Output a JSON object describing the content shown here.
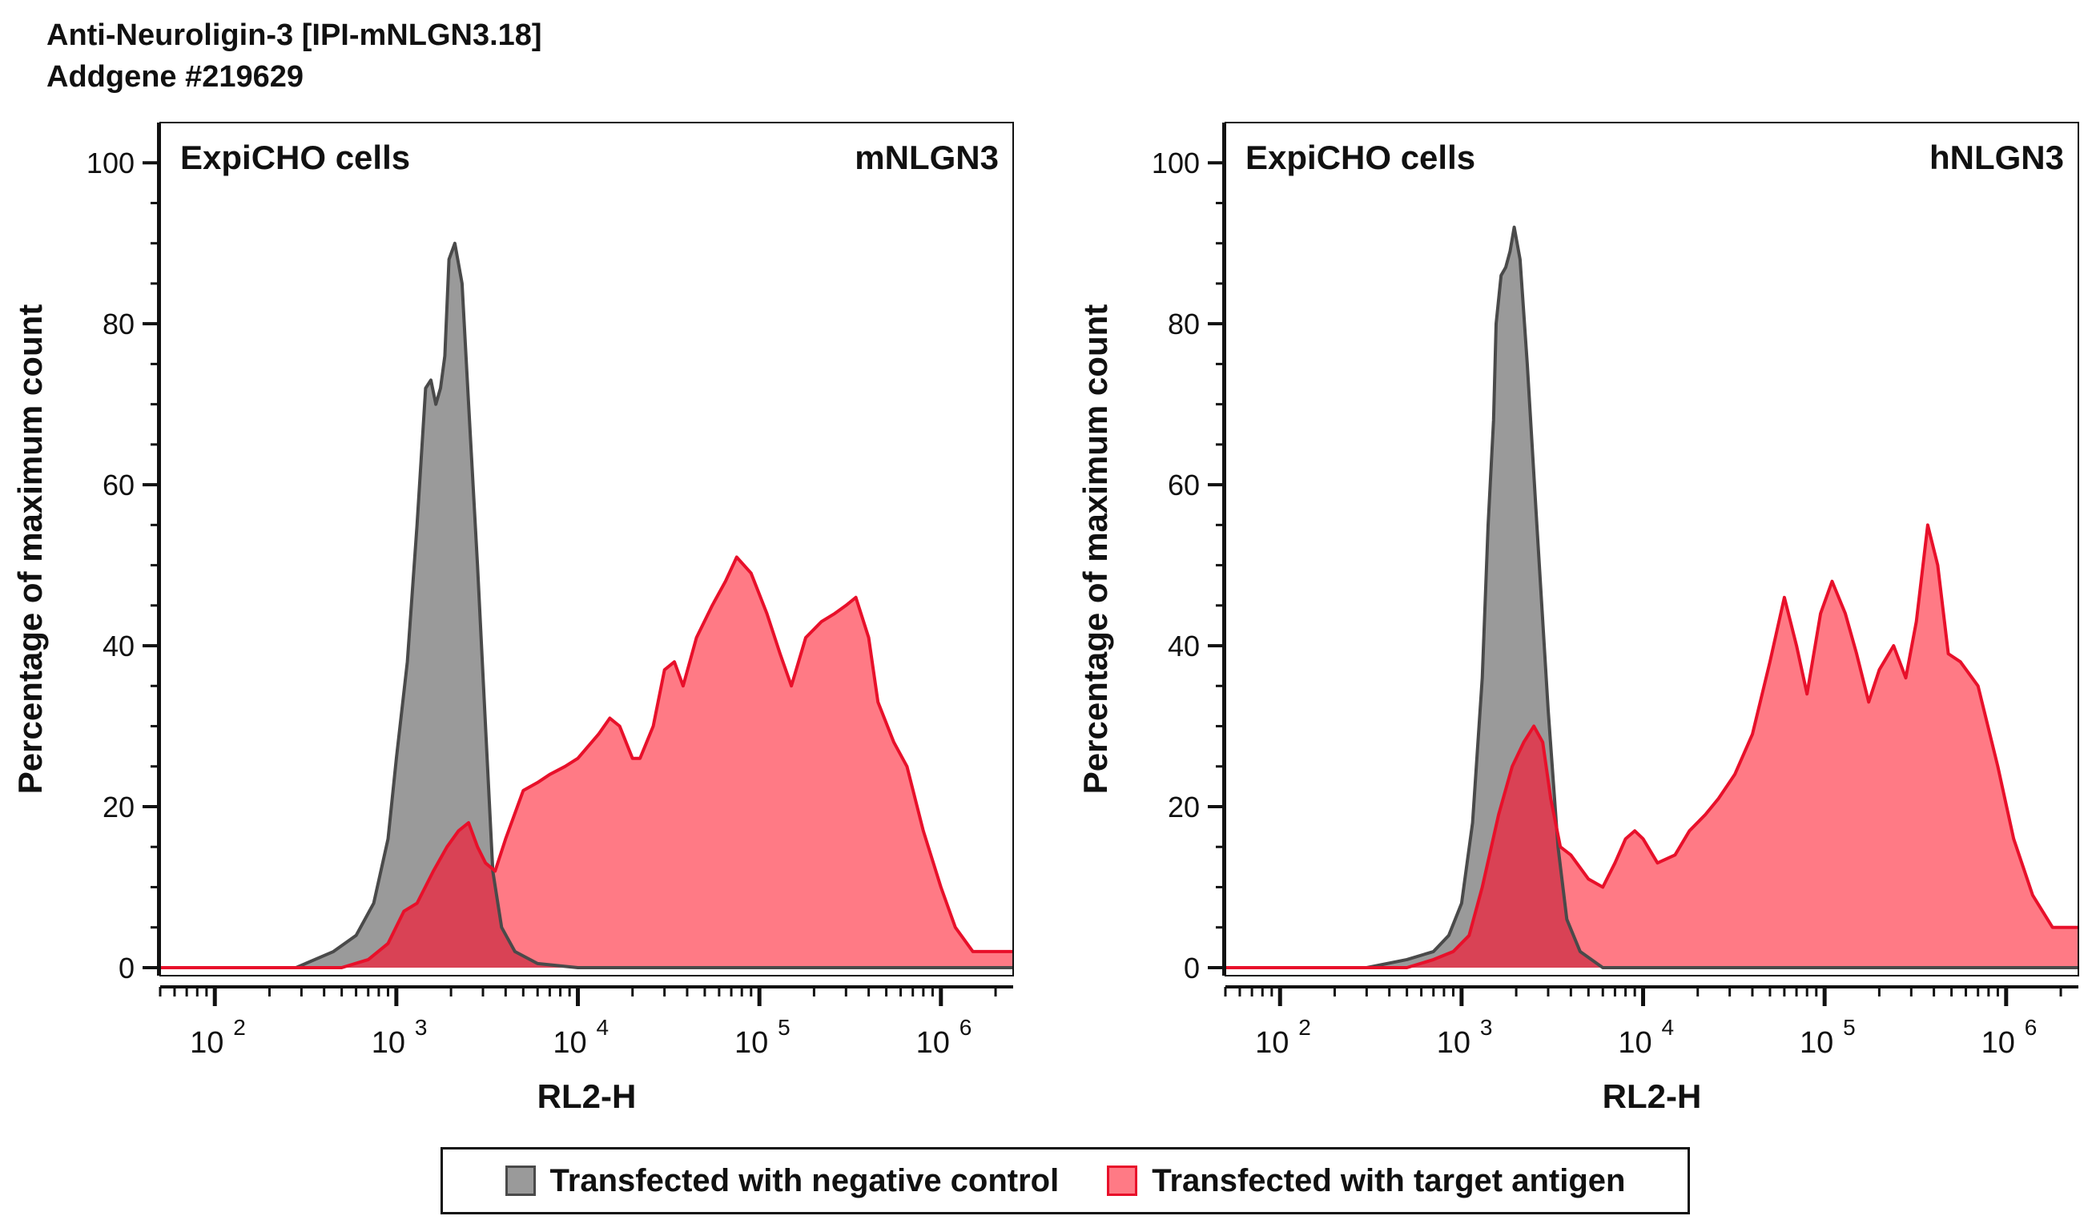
{
  "title": {
    "line1": "Anti-Neuroligin-3 [IPI-mNLGN3.18]",
    "line2": "Addgene #219629"
  },
  "colors": {
    "negative_fill": "#9a9a9a",
    "negative_stroke": "#4a4a4a",
    "target_fill": "#ff7a85",
    "target_stroke": "#e8102a",
    "overlap_fill": "#d94255"
  },
  "legend": {
    "items": [
      {
        "label": "Transfected with negative control",
        "key": "negative"
      },
      {
        "label": "Transfected with target antigen",
        "key": "target"
      }
    ]
  },
  "chart_data": [
    {
      "type": "area",
      "title": "",
      "corner_left": "ExpiCHO cells",
      "corner_right": "mNLGN3",
      "xlabel": "RL2-H",
      "ylabel": "Percentage of maximum count",
      "xscale": "log",
      "xlim": [
        50,
        2500000
      ],
      "ylim": [
        -1,
        105
      ],
      "yticks": [
        0,
        20,
        40,
        60,
        80,
        100
      ],
      "xticks": [
        100,
        1000,
        10000,
        100000,
        1000000
      ],
      "xtick_labels": [
        {
          "base": "10",
          "exp": "2"
        },
        {
          "base": "10",
          "exp": "3"
        },
        {
          "base": "10",
          "exp": "4"
        },
        {
          "base": "10",
          "exp": "5"
        },
        {
          "base": "10",
          "exp": "6"
        }
      ],
      "series": [
        {
          "name": "Transfected with negative control",
          "key": "negative",
          "points": [
            [
              50,
              0
            ],
            [
              280,
              0
            ],
            [
              450,
              2
            ],
            [
              600,
              4
            ],
            [
              750,
              8
            ],
            [
              900,
              16
            ],
            [
              1000,
              26
            ],
            [
              1150,
              38
            ],
            [
              1300,
              55
            ],
            [
              1450,
              72
            ],
            [
              1550,
              73
            ],
            [
              1650,
              70
            ],
            [
              1750,
              72
            ],
            [
              1850,
              76
            ],
            [
              1950,
              88
            ],
            [
              2100,
              90
            ],
            [
              2300,
              85
            ],
            [
              2500,
              70
            ],
            [
              2800,
              50
            ],
            [
              3100,
              30
            ],
            [
              3400,
              12
            ],
            [
              3800,
              5
            ],
            [
              4500,
              2
            ],
            [
              6000,
              0.5
            ],
            [
              10000,
              0
            ],
            [
              2500000,
              0
            ]
          ]
        },
        {
          "name": "Transfected with target antigen",
          "key": "target",
          "points": [
            [
              50,
              0
            ],
            [
              500,
              0
            ],
            [
              700,
              1
            ],
            [
              900,
              3
            ],
            [
              1100,
              7
            ],
            [
              1300,
              8
            ],
            [
              1600,
              12
            ],
            [
              1900,
              15
            ],
            [
              2200,
              17
            ],
            [
              2500,
              18
            ],
            [
              2800,
              15
            ],
            [
              3100,
              13
            ],
            [
              3500,
              12
            ],
            [
              4000,
              16
            ],
            [
              5000,
              22
            ],
            [
              6000,
              23
            ],
            [
              7000,
              24
            ],
            [
              8500,
              25
            ],
            [
              10000,
              26
            ],
            [
              13000,
              29
            ],
            [
              15000,
              31
            ],
            [
              17000,
              30
            ],
            [
              20000,
              26
            ],
            [
              22000,
              26
            ],
            [
              26000,
              30
            ],
            [
              30000,
              37
            ],
            [
              34000,
              38
            ],
            [
              38000,
              35
            ],
            [
              45000,
              41
            ],
            [
              55000,
              45
            ],
            [
              65000,
              48
            ],
            [
              75000,
              51
            ],
            [
              90000,
              49
            ],
            [
              110000,
              44
            ],
            [
              130000,
              39
            ],
            [
              150000,
              35
            ],
            [
              180000,
              41
            ],
            [
              220000,
              43
            ],
            [
              260000,
              44
            ],
            [
              300000,
              45
            ],
            [
              340000,
              46
            ],
            [
              400000,
              41
            ],
            [
              450000,
              33
            ],
            [
              550000,
              28
            ],
            [
              650000,
              25
            ],
            [
              800000,
              17
            ],
            [
              1000000,
              10
            ],
            [
              1200000,
              5
            ],
            [
              1500000,
              2
            ],
            [
              2500000,
              2
            ]
          ]
        }
      ]
    },
    {
      "type": "area",
      "title": "",
      "corner_left": "ExpiCHO cells",
      "corner_right": "hNLGN3",
      "xlabel": "RL2-H",
      "ylabel": "Percentage of maximum count",
      "xscale": "log",
      "xlim": [
        50,
        2500000
      ],
      "ylim": [
        -1,
        105
      ],
      "yticks": [
        0,
        20,
        40,
        60,
        80,
        100
      ],
      "xticks": [
        100,
        1000,
        10000,
        100000,
        1000000
      ],
      "xtick_labels": [
        {
          "base": "10",
          "exp": "2"
        },
        {
          "base": "10",
          "exp": "3"
        },
        {
          "base": "10",
          "exp": "4"
        },
        {
          "base": "10",
          "exp": "5"
        },
        {
          "base": "10",
          "exp": "6"
        }
      ],
      "series": [
        {
          "name": "Transfected with negative control",
          "key": "negative",
          "points": [
            [
              50,
              0
            ],
            [
              300,
              0
            ],
            [
              500,
              1
            ],
            [
              700,
              2
            ],
            [
              850,
              4
            ],
            [
              1000,
              8
            ],
            [
              1150,
              18
            ],
            [
              1300,
              36
            ],
            [
              1400,
              55
            ],
            [
              1500,
              68
            ],
            [
              1550,
              80
            ],
            [
              1650,
              86
            ],
            [
              1750,
              87
            ],
            [
              1850,
              89
            ],
            [
              1950,
              92
            ],
            [
              2100,
              88
            ],
            [
              2300,
              75
            ],
            [
              2600,
              55
            ],
            [
              3000,
              32
            ],
            [
              3400,
              15
            ],
            [
              3800,
              6
            ],
            [
              4500,
              2
            ],
            [
              6000,
              0
            ],
            [
              2500000,
              0
            ]
          ]
        },
        {
          "name": "Transfected with target antigen",
          "key": "target",
          "points": [
            [
              50,
              0
            ],
            [
              500,
              0
            ],
            [
              700,
              1
            ],
            [
              900,
              2
            ],
            [
              1100,
              4
            ],
            [
              1300,
              10
            ],
            [
              1600,
              19
            ],
            [
              1900,
              25
            ],
            [
              2200,
              28
            ],
            [
              2500,
              30
            ],
            [
              2800,
              28
            ],
            [
              3100,
              21
            ],
            [
              3500,
              15
            ],
            [
              4000,
              14
            ],
            [
              5000,
              11
            ],
            [
              6000,
              10
            ],
            [
              7000,
              13
            ],
            [
              8000,
              16
            ],
            [
              9000,
              17
            ],
            [
              10000,
              16
            ],
            [
              12000,
              13
            ],
            [
              15000,
              14
            ],
            [
              18000,
              17
            ],
            [
              22000,
              19
            ],
            [
              26000,
              21
            ],
            [
              32000,
              24
            ],
            [
              40000,
              29
            ],
            [
              50000,
              38
            ],
            [
              60000,
              46
            ],
            [
              70000,
              40
            ],
            [
              80000,
              34
            ],
            [
              95000,
              44
            ],
            [
              110000,
              48
            ],
            [
              130000,
              44
            ],
            [
              150000,
              39
            ],
            [
              175000,
              33
            ],
            [
              200000,
              37
            ],
            [
              240000,
              40
            ],
            [
              280000,
              36
            ],
            [
              320000,
              43
            ],
            [
              370000,
              55
            ],
            [
              420000,
              50
            ],
            [
              480000,
              39
            ],
            [
              560000,
              38
            ],
            [
              700000,
              35
            ],
            [
              900000,
              25
            ],
            [
              1100000,
              16
            ],
            [
              1400000,
              9
            ],
            [
              1800000,
              5
            ],
            [
              2500000,
              5
            ]
          ]
        }
      ]
    }
  ]
}
